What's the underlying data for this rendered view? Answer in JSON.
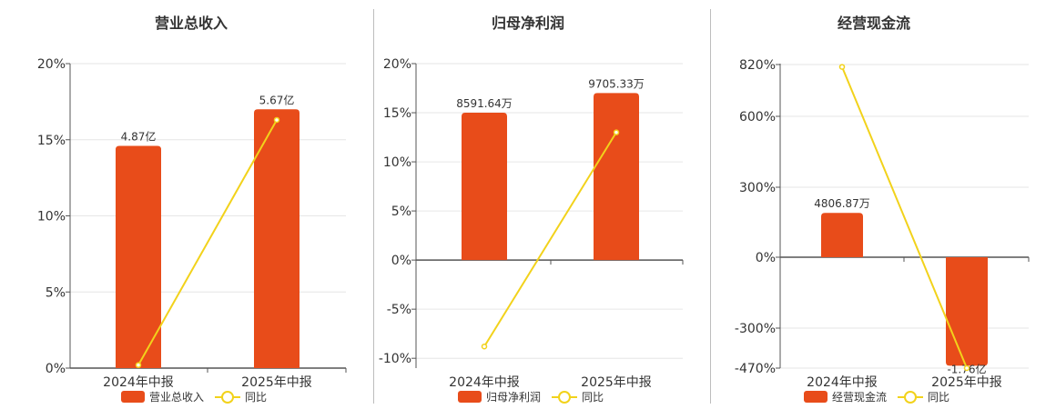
{
  "chart_data": [
    {
      "type": "bar",
      "title": "营业总收入",
      "categories": [
        "2024年中报",
        "2025年中报"
      ],
      "series": [
        {
          "name": "营业总收入",
          "type": "bar",
          "values": [
            14.6,
            17.0
          ],
          "labels": [
            "4.87亿",
            "5.67亿"
          ]
        },
        {
          "name": "同比",
          "type": "line",
          "values": [
            0.2,
            16.3
          ]
        }
      ],
      "yticks": [
        "0%",
        "5%",
        "10%",
        "15%",
        "20%"
      ],
      "ytick_values": [
        0,
        5,
        10,
        15,
        20
      ],
      "ylim": [
        0,
        20
      ],
      "legend": "bottom",
      "grid": true
    },
    {
      "type": "bar",
      "title": "归母净利润",
      "categories": [
        "2024年中报",
        "2025年中报"
      ],
      "series": [
        {
          "name": "归母净利润",
          "type": "bar",
          "values": [
            15.0,
            17.0
          ],
          "labels": [
            "8591.64万",
            "9705.33万"
          ]
        },
        {
          "name": "同比",
          "type": "line",
          "values": [
            -8.8,
            13.0
          ]
        }
      ],
      "yticks": [
        "-10%",
        "-5%",
        "0%",
        "5%",
        "10%",
        "15%",
        "20%"
      ],
      "ytick_values": [
        -10,
        -5,
        0,
        5,
        10,
        15,
        20
      ],
      "ylim": [
        -11,
        20
      ],
      "legend": "bottom",
      "grid": true
    },
    {
      "type": "bar",
      "title": "经营现金流",
      "categories": [
        "2024年中报",
        "2025年中报"
      ],
      "series": [
        {
          "name": "经营现金流",
          "type": "bar",
          "values": [
            190,
            -460
          ],
          "labels": [
            "4806.87万",
            "-1.76亿"
          ]
        },
        {
          "name": "同比",
          "type": "line",
          "values": [
            810,
            -470
          ]
        }
      ],
      "yticks": [
        "-470%",
        "-300%",
        "0%",
        "300%",
        "600%",
        "820%"
      ],
      "ytick_values": [
        -470,
        -300,
        0,
        300,
        600,
        820
      ],
      "ylim": [
        -470,
        820
      ],
      "legend": "bottom",
      "grid": true
    }
  ],
  "colors": {
    "bar": "#e84c1a",
    "line": "#f2d21b",
    "axis": "#555555",
    "grid": "#e6e6e6"
  }
}
